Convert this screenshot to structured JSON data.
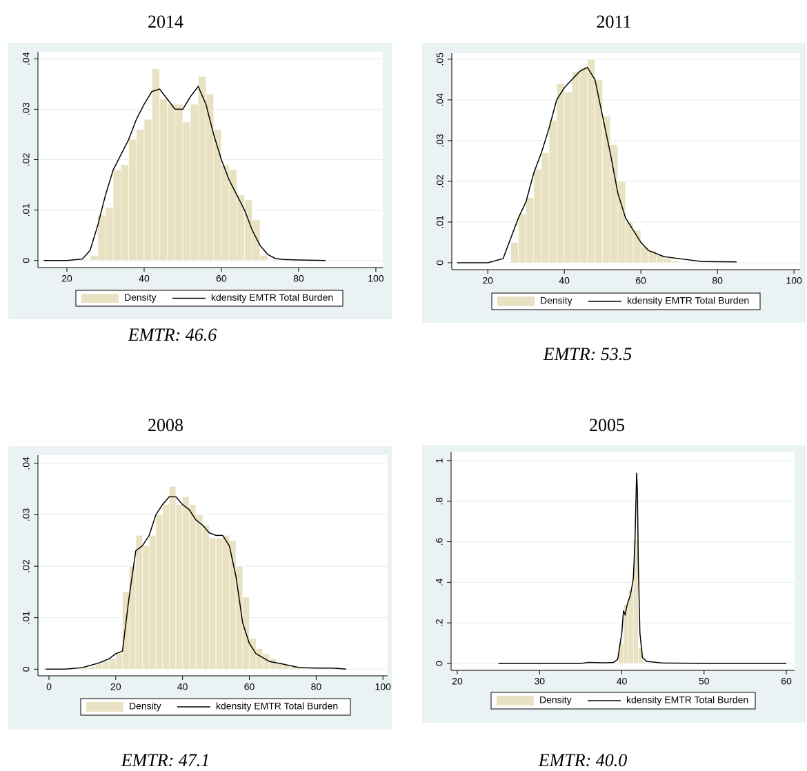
{
  "chart_data": [
    {
      "type": "histogram",
      "title": "2014",
      "caption": "EMTR:  46.6",
      "histogram": {
        "name": "Density",
        "color": "#e8e2c2",
        "bins": [
          26,
          28,
          30,
          32,
          34,
          36,
          38,
          40,
          42,
          44,
          46,
          48,
          50,
          52,
          54,
          56,
          58,
          60,
          62,
          64,
          66,
          68,
          70,
          72
        ],
        "values": [
          0.001,
          0.009,
          0.0105,
          0.018,
          0.019,
          0.024,
          0.026,
          0.028,
          0.038,
          0.032,
          0.031,
          0.031,
          0.0275,
          0.031,
          0.0365,
          0.033,
          0.026,
          0.019,
          0.018,
          0.013,
          0.012,
          0.008,
          0.001
        ]
      },
      "kdensity": {
        "name": "kdensity EMTR Total Burden",
        "color": "#000000",
        "x": [
          14,
          20,
          24,
          26,
          28,
          30,
          32,
          34,
          36,
          38,
          40,
          42,
          44,
          46,
          48,
          50,
          52,
          54,
          56,
          58,
          60,
          62,
          64,
          66,
          68,
          70,
          72,
          74,
          76,
          80,
          87
        ],
        "y": [
          0,
          0,
          0.0003,
          0.002,
          0.007,
          0.013,
          0.018,
          0.021,
          0.024,
          0.028,
          0.031,
          0.0335,
          0.034,
          0.032,
          0.03,
          0.03,
          0.0325,
          0.0345,
          0.031,
          0.025,
          0.02,
          0.016,
          0.013,
          0.01,
          0.006,
          0.003,
          0.0012,
          0.0004,
          0.0002,
          0.0001,
          0
        ]
      },
      "xlim": [
        12.5,
        101.8
      ],
      "ylim": [
        -0.0014,
        0.0414
      ],
      "xticks": [
        20,
        40,
        60,
        80,
        100
      ],
      "yticks": [
        0,
        {
          "value": 0.01,
          "label": ".01"
        },
        {
          "value": 0.02,
          "label": ".02"
        },
        {
          "value": 0.03,
          "label": ".03"
        },
        {
          "value": 0.04,
          "label": ".04"
        }
      ],
      "grid": true
    },
    {
      "type": "histogram",
      "title": "2011",
      "caption": "EMTR: 53.5",
      "histogram": {
        "name": "Density",
        "color": "#e8e2c2",
        "bins": [
          26,
          28,
          30,
          32,
          34,
          36,
          38,
          40,
          42,
          44,
          46,
          48,
          50,
          52,
          54,
          56,
          58,
          60,
          62,
          64,
          66,
          68,
          70
        ],
        "values": [
          0.005,
          0.012,
          0.016,
          0.023,
          0.027,
          0.035,
          0.044,
          0.042,
          0.047,
          0.048,
          0.05,
          0.045,
          0.036,
          0.029,
          0.02,
          0.01,
          0.008,
          0.004,
          0.003,
          0.002,
          0.001,
          0.0005
        ]
      },
      "kdensity": {
        "name": "kdensity EMTR Total Burden",
        "color": "#000000",
        "x": [
          12,
          20,
          24,
          26,
          28,
          30,
          32,
          34,
          36,
          38,
          40,
          42,
          44,
          46,
          48,
          50,
          52,
          54,
          56,
          58,
          60,
          62,
          66,
          70,
          76,
          85
        ],
        "y": [
          0,
          0,
          0.001,
          0.006,
          0.011,
          0.015,
          0.022,
          0.027,
          0.033,
          0.04,
          0.043,
          0.045,
          0.047,
          0.048,
          0.045,
          0.036,
          0.027,
          0.017,
          0.011,
          0.008,
          0.005,
          0.003,
          0.0015,
          0.001,
          0.0003,
          0.0002
        ]
      },
      "xlim": [
        10.6,
        101.6
      ],
      "ylim": [
        -0.0017,
        0.0515
      ],
      "xticks": [
        20,
        40,
        60,
        80,
        100
      ],
      "yticks": [
        0,
        {
          "value": 0.01,
          "label": ".01"
        },
        {
          "value": 0.02,
          "label": ".02"
        },
        {
          "value": 0.03,
          "label": ".03"
        },
        {
          "value": 0.04,
          "label": ".04"
        },
        {
          "value": 0.05,
          "label": ".05"
        }
      ],
      "grid": true
    },
    {
      "type": "histogram",
      "title": "2008",
      "caption": "EMTR: 47.1",
      "histogram": {
        "name": "Density",
        "color": "#e8e2c2",
        "bins": [
          10,
          12,
          14,
          16,
          18,
          20,
          22,
          24,
          26,
          28,
          30,
          32,
          34,
          36,
          38,
          40,
          42,
          44,
          46,
          48,
          50,
          52,
          54,
          56,
          58,
          60,
          62,
          64,
          66,
          68,
          70,
          72,
          74,
          76
        ],
        "values": [
          0.0003,
          0.0005,
          0.001,
          0.0015,
          0.002,
          0.003,
          0.015,
          0.02,
          0.026,
          0.024,
          0.026,
          0.03,
          0.032,
          0.0355,
          0.032,
          0.0335,
          0.032,
          0.03,
          0.028,
          0.0255,
          0.0255,
          0.026,
          0.025,
          0.02,
          0.014,
          0.006,
          0.004,
          0.003,
          0.002,
          0.001,
          0.0008,
          0.0005,
          0.0003
        ]
      },
      "kdensity": {
        "name": "kdensity EMTR Total Burden",
        "color": "#000000",
        "x": [
          -1,
          5,
          10,
          15,
          18,
          20,
          22,
          24,
          26,
          28,
          30,
          32,
          34,
          36,
          38,
          40,
          42,
          44,
          46,
          48,
          50,
          52,
          54,
          56,
          58,
          60,
          62,
          66,
          70,
          75,
          80,
          85,
          89
        ],
        "y": [
          0,
          0,
          0.0003,
          0.0012,
          0.002,
          0.003,
          0.0035,
          0.014,
          0.023,
          0.024,
          0.026,
          0.03,
          0.032,
          0.0335,
          0.0335,
          0.032,
          0.031,
          0.029,
          0.028,
          0.0265,
          0.026,
          0.026,
          0.024,
          0.018,
          0.009,
          0.005,
          0.003,
          0.0015,
          0.001,
          0.0003,
          0.0002,
          0.0002,
          0
        ]
      },
      "xlim": [
        -3.3,
        101.4
      ],
      "ylim": [
        -0.0013,
        0.0416
      ],
      "xticks": [
        0,
        20,
        40,
        60,
        80,
        100
      ],
      "yticks": [
        0,
        {
          "value": 0.01,
          "label": ".01"
        },
        {
          "value": 0.02,
          "label": ".02"
        },
        {
          "value": 0.03,
          "label": ".03"
        },
        {
          "value": 0.04,
          "label": ".04"
        }
      ],
      "grid": true
    },
    {
      "type": "histogram",
      "title": "2005",
      "caption": "EMTR: 40.0",
      "histogram": {
        "name": "Density",
        "color": "#e8e2c2",
        "bins": [
          39.6,
          40.2,
          40.8,
          41.4,
          42.0,
          42.6
        ],
        "values": [
          0.1,
          0.29,
          0.36,
          0.61,
          0.08
        ]
      },
      "kdensity": {
        "name": "kdensity EMTR Total Burden",
        "color": "#000000",
        "x": [
          25,
          30,
          35,
          36,
          38,
          39,
          39.5,
          40,
          40.2,
          40.4,
          40.6,
          40.8,
          41,
          41.2,
          41.4,
          41.6,
          41.8,
          41.9,
          42,
          42.2,
          42.5,
          43,
          45,
          50,
          60
        ],
        "y": [
          0,
          0,
          0,
          0.005,
          0.003,
          0.005,
          0.02,
          0.15,
          0.26,
          0.24,
          0.28,
          0.31,
          0.33,
          0.37,
          0.42,
          0.6,
          0.94,
          0.85,
          0.5,
          0.15,
          0.03,
          0.01,
          0.002,
          0,
          0
        ]
      },
      "xlim": [
        19.25,
        61
      ],
      "ylim": [
        -0.034,
        1.044
      ],
      "xticks": [
        20,
        30,
        40,
        50,
        60
      ],
      "yticks": [
        0,
        {
          "value": 0.2,
          "label": ".2"
        },
        {
          "value": 0.4,
          "label": ".4"
        },
        {
          "value": 0.6,
          "label": ".6"
        },
        {
          "value": 0.8,
          "label": ".8"
        },
        1
      ],
      "grid": true
    }
  ]
}
